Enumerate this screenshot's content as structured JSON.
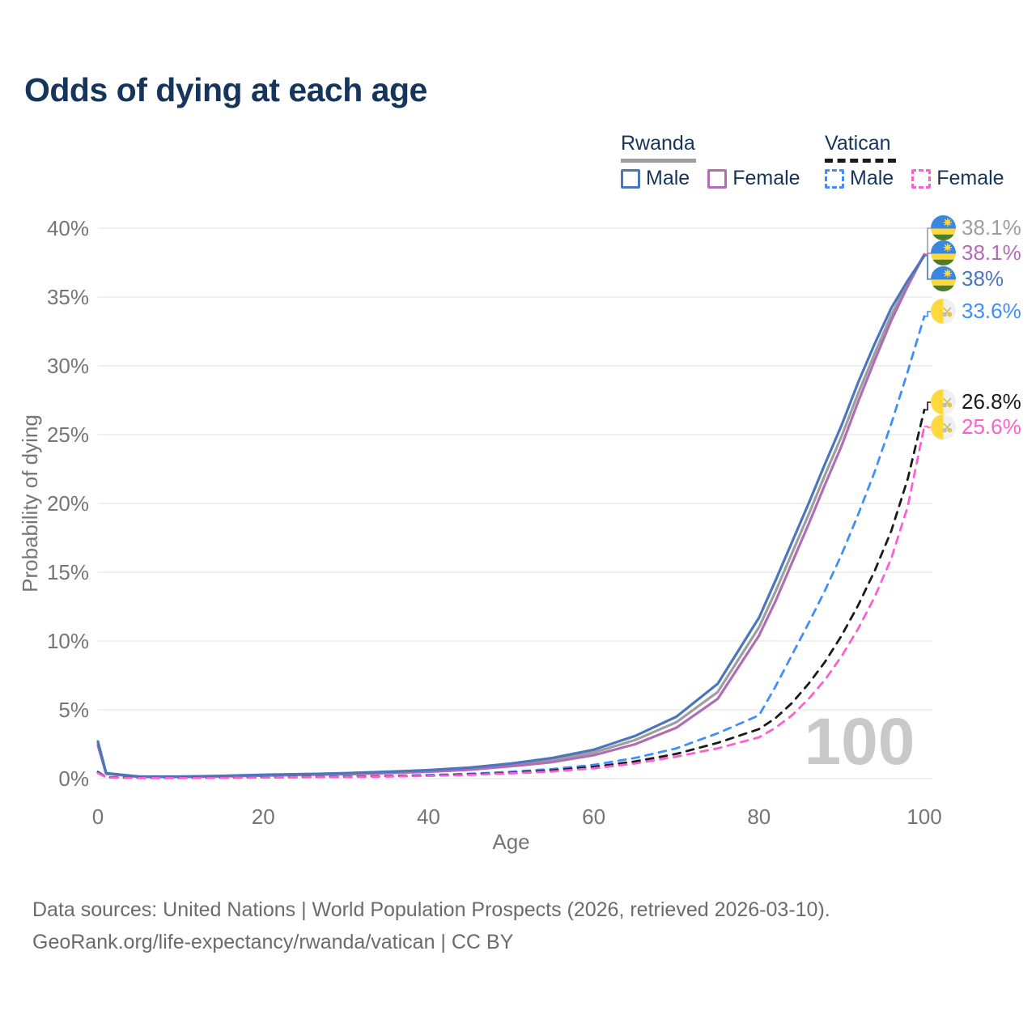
{
  "title": "Odds of dying at each age",
  "watermark": "100",
  "footer": {
    "line1": "Data sources: United Nations | World Population Prospects (2026, retrieved 2026-03-10).",
    "line2": "GeoRank.org/life-expectancy/rwanda/vatican | CC BY"
  },
  "legend": {
    "rwanda": {
      "title": "Rwanda",
      "male": "Male",
      "female": "Female"
    },
    "vatican": {
      "title": "Vatican",
      "male": "Male",
      "female": "Female"
    }
  },
  "colors": {
    "title_text": "#16355c",
    "axis_text": "#757575",
    "grid": "#ececec",
    "watermark": "#c9c9c9",
    "rwanda_underline": "#9e9e9e",
    "vatican_underline": "#1a1a1a",
    "rwanda_male": "#4b76bd",
    "rwanda_overall": "#9e9e9e",
    "rwanda_female": "#b06db4",
    "vatican_male": "#3f8efc",
    "vatican_overall": "#1a1a1a",
    "vatican_female": "#ff5ed2"
  },
  "chart_data": {
    "type": "line",
    "title": "Odds of dying at each age",
    "xlabel": "Age",
    "ylabel": "Probability of dying",
    "xlim": [
      0,
      100
    ],
    "ylim": [
      0,
      40
    ],
    "grid": true,
    "legend_position": "top-right",
    "x_ticks": [
      0,
      20,
      40,
      60,
      80,
      100
    ],
    "y_ticks": [
      0,
      5,
      10,
      15,
      20,
      25,
      30,
      35,
      40
    ],
    "y_tick_labels": [
      "0%",
      "5%",
      "10%",
      "15%",
      "20%",
      "25%",
      "30%",
      "35%",
      "40%"
    ],
    "ages": [
      0,
      1,
      5,
      10,
      15,
      20,
      25,
      30,
      35,
      40,
      45,
      50,
      55,
      60,
      65,
      70,
      75,
      80,
      82,
      84,
      86,
      88,
      90,
      92,
      94,
      96,
      98,
      100
    ],
    "series": [
      {
        "name": "Rwanda",
        "style": "solid",
        "color": "#9e9e9e",
        "end_label": "38.1%",
        "flag": "rwanda",
        "values": [
          2.55,
          0.37,
          0.14,
          0.14,
          0.18,
          0.25,
          0.3,
          0.36,
          0.45,
          0.56,
          0.72,
          1.0,
          1.35,
          1.9,
          2.8,
          4.1,
          6.3,
          11.0,
          13.6,
          16.4,
          19.2,
          22.1,
          24.9,
          28.0,
          30.9,
          33.7,
          36.0,
          38.1
        ]
      },
      {
        "name": "Rwanda Female",
        "style": "solid",
        "color": "#b06db4",
        "end_label": "38.1%",
        "flag": "rwanda",
        "values": [
          2.4,
          0.34,
          0.13,
          0.13,
          0.16,
          0.22,
          0.27,
          0.32,
          0.4,
          0.5,
          0.65,
          0.9,
          1.2,
          1.7,
          2.5,
          3.7,
          5.8,
          10.4,
          12.9,
          15.7,
          18.5,
          21.4,
          24.2,
          27.4,
          30.4,
          33.3,
          35.8,
          38.1
        ]
      },
      {
        "name": "Rwanda Male",
        "style": "solid",
        "color": "#4b76bd",
        "end_label": "38%",
        "flag": "rwanda",
        "values": [
          2.7,
          0.4,
          0.15,
          0.15,
          0.2,
          0.28,
          0.33,
          0.4,
          0.5,
          0.62,
          0.8,
          1.1,
          1.5,
          2.1,
          3.1,
          4.5,
          6.9,
          11.7,
          14.4,
          17.2,
          20.0,
          22.9,
          25.7,
          28.8,
          31.6,
          34.2,
          36.2,
          38.0
        ]
      },
      {
        "name": "Vatican Male",
        "style": "dashed",
        "color": "#3f8efc",
        "end_label": "33.6%",
        "flag": "vatican",
        "values": [
          0.5,
          0.1,
          0.05,
          0.05,
          0.07,
          0.1,
          0.12,
          0.15,
          0.2,
          0.26,
          0.35,
          0.5,
          0.7,
          1.0,
          1.5,
          2.2,
          3.3,
          4.6,
          6.7,
          9.0,
          11.3,
          13.7,
          16.3,
          19.2,
          22.3,
          25.8,
          29.6,
          33.6
        ]
      },
      {
        "name": "Vatican",
        "style": "dashed",
        "color": "#1a1a1a",
        "end_label": "26.8%",
        "flag": "vatican",
        "values": [
          0.45,
          0.09,
          0.05,
          0.05,
          0.06,
          0.09,
          0.11,
          0.13,
          0.17,
          0.22,
          0.3,
          0.42,
          0.6,
          0.85,
          1.25,
          1.8,
          2.6,
          3.6,
          4.4,
          5.5,
          6.9,
          8.5,
          10.4,
          12.6,
          15.1,
          18.0,
          21.8,
          26.8
        ]
      },
      {
        "name": "Vatican Female",
        "style": "dashed",
        "color": "#ff5ed2",
        "end_label": "25.6%",
        "flag": "vatican",
        "values": [
          0.4,
          0.08,
          0.04,
          0.04,
          0.05,
          0.08,
          0.1,
          0.12,
          0.15,
          0.2,
          0.27,
          0.38,
          0.52,
          0.75,
          1.1,
          1.6,
          2.2,
          3.0,
          3.7,
          4.6,
          5.8,
          7.2,
          8.9,
          10.9,
          13.2,
          16.0,
          19.8,
          25.6
        ]
      }
    ],
    "end_labels": [
      {
        "label": "38.1%",
        "series": "Rwanda",
        "value": 38.1,
        "color": "#9e9e9e",
        "flag": "rwanda"
      },
      {
        "label": "38.1%",
        "series": "Rwanda Female",
        "value": 38.1,
        "color": "#b06db4",
        "flag": "rwanda"
      },
      {
        "label": "38%",
        "series": "Rwanda Male",
        "value": 38.0,
        "color": "#4b76bd",
        "flag": "rwanda"
      },
      {
        "label": "33.6%",
        "series": "Vatican Male",
        "value": 33.6,
        "color": "#3f8efc",
        "flag": "vatican"
      },
      {
        "label": "26.8%",
        "series": "Vatican",
        "value": 26.8,
        "color": "#1a1a1a",
        "flag": "vatican"
      },
      {
        "label": "25.6%",
        "series": "Vatican Female",
        "value": 25.6,
        "color": "#ff5ed2",
        "flag": "vatican"
      }
    ]
  }
}
